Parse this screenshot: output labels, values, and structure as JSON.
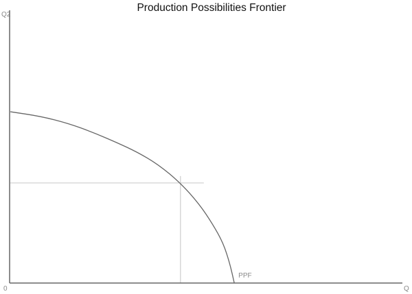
{
  "chart_data": {
    "type": "line",
    "title": "Production Possibilities Frontier",
    "xlabel": "Q",
    "ylabel": "Q2",
    "origin_label": "0",
    "xlim": [
      0,
      100
    ],
    "ylim": [
      0,
      100
    ],
    "grid": false,
    "series": [
      {
        "name": "PPF",
        "color": "#666666",
        "x": [
          0.2,
          8.0,
          15.0,
          21.1,
          27.3,
          32.5,
          37.8,
          43.5,
          48.3,
          51.7,
          54.4,
          56.1,
          57.2
        ],
        "y": [
          62.8,
          61.1,
          58.5,
          55.3,
          51.5,
          48.0,
          43.5,
          36.7,
          28.9,
          21.6,
          14.6,
          7.0,
          0
        ]
      }
    ],
    "highlight_point": {
      "x": 43.5,
      "y": 36.7,
      "guide_color": "#cccccc"
    },
    "axis_color": "#666666"
  }
}
